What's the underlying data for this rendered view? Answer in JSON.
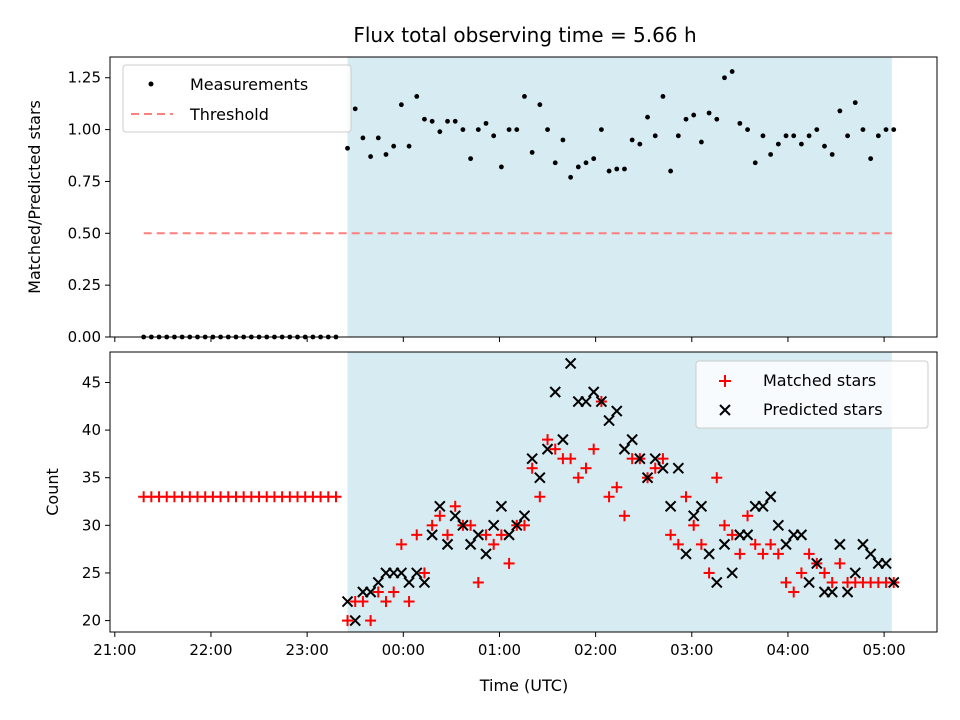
{
  "title": "Flux total observing time = 5.66 h",
  "shade_color": "#add8e6",
  "x_ticks": [
    "21:00",
    "22:00",
    "23:00",
    "00:00",
    "01:00",
    "02:00",
    "03:00",
    "04:00",
    "05:00"
  ],
  "x_label": "Time (UTC)",
  "chart_data": [
    {
      "type": "scatter",
      "ylabel": "Matched/Predicted stars",
      "xlim": [
        20.95,
        29.55
      ],
      "ylim": [
        0,
        1.35
      ],
      "yticks": [
        "0.00",
        "0.25",
        "0.50",
        "0.75",
        "1.00",
        "1.25"
      ],
      "shaded_x": [
        23.42,
        29.08
      ],
      "legend_position": "top-left",
      "series": [
        {
          "name": "Measurements",
          "color": "#000000",
          "marker": "dot",
          "x": [
            21.3,
            21.38,
            21.46,
            21.54,
            21.62,
            21.7,
            21.78,
            21.86,
            21.94,
            22.02,
            22.1,
            22.18,
            22.26,
            22.34,
            22.42,
            22.5,
            22.58,
            22.66,
            22.74,
            22.82,
            22.9,
            22.98,
            23.06,
            23.14,
            23.22,
            23.3,
            23.42,
            23.5,
            23.58,
            23.66,
            23.74,
            23.82,
            23.9,
            23.98,
            24.06,
            24.14,
            24.22,
            24.3,
            24.38,
            24.46,
            24.54,
            24.62,
            24.7,
            24.78,
            24.86,
            24.94,
            25.02,
            25.1,
            25.18,
            25.26,
            25.34,
            25.42,
            25.5,
            25.58,
            25.66,
            25.74,
            25.82,
            25.9,
            25.98,
            26.06,
            26.14,
            26.22,
            26.3,
            26.38,
            26.46,
            26.54,
            26.62,
            26.7,
            26.78,
            26.86,
            26.94,
            27.02,
            27.1,
            27.18,
            27.26,
            27.34,
            27.42,
            27.5,
            27.58,
            27.66,
            27.74,
            27.82,
            27.9,
            27.98,
            28.06,
            28.14,
            28.22,
            28.3,
            28.38,
            28.46,
            28.54,
            28.62,
            28.7,
            28.78,
            28.86,
            28.94,
            29.02,
            29.1
          ],
          "y": [
            0,
            0,
            0,
            0,
            0,
            0,
            0,
            0,
            0,
            0,
            0,
            0,
            0,
            0,
            0,
            0,
            0,
            0,
            0,
            0,
            0,
            0,
            0,
            0,
            0,
            0,
            0.91,
            1.1,
            0.96,
            0.87,
            0.96,
            0.88,
            0.92,
            1.12,
            0.92,
            1.16,
            1.05,
            1.04,
            0.99,
            1.04,
            1.04,
            1.0,
            0.86,
            1.0,
            1.03,
            0.97,
            0.82,
            1.0,
            1.0,
            1.16,
            0.89,
            1.12,
            1.0,
            0.84,
            0.95,
            0.77,
            0.82,
            0.84,
            0.86,
            1.0,
            0.8,
            0.81,
            0.81,
            0.95,
            0.93,
            1.06,
            0.97,
            1.16,
            0.8,
            0.97,
            1.05,
            1.07,
            0.94,
            1.08,
            1.05,
            1.25,
            1.28,
            1.03,
            1.0,
            0.84,
            0.97,
            0.88,
            0.93,
            0.97,
            0.97,
            0.93,
            0.97,
            1.0,
            0.92,
            0.88,
            1.09,
            0.97,
            1.13,
            1.0,
            0.86,
            0.97,
            1.0,
            1.0
          ]
        },
        {
          "name": "Threshold",
          "color": "#ff7f7f",
          "style": "dashed",
          "x": [
            21.3,
            29.08
          ],
          "y": [
            0.5,
            0.5
          ]
        }
      ]
    },
    {
      "type": "scatter",
      "ylabel": "Count",
      "xlim": [
        20.95,
        29.55
      ],
      "ylim": [
        18.8,
        48.2
      ],
      "yticks": [
        "20",
        "25",
        "30",
        "35",
        "40",
        "45"
      ],
      "shaded_x": [
        23.42,
        29.08
      ],
      "legend_position": "top-right",
      "series": [
        {
          "name": "Matched stars",
          "color": "#ff0000",
          "marker": "plus",
          "x": [
            21.3,
            21.38,
            21.46,
            21.54,
            21.62,
            21.7,
            21.78,
            21.86,
            21.94,
            22.02,
            22.1,
            22.18,
            22.26,
            22.34,
            22.42,
            22.5,
            22.58,
            22.66,
            22.74,
            22.82,
            22.9,
            22.98,
            23.06,
            23.14,
            23.22,
            23.3,
            23.42,
            23.5,
            23.58,
            23.66,
            23.74,
            23.82,
            23.9,
            23.98,
            24.06,
            24.14,
            24.22,
            24.3,
            24.38,
            24.46,
            24.54,
            24.62,
            24.7,
            24.78,
            24.86,
            24.94,
            25.02,
            25.1,
            25.18,
            25.26,
            25.34,
            25.42,
            25.5,
            25.58,
            25.66,
            25.74,
            25.82,
            25.9,
            25.98,
            26.06,
            26.14,
            26.22,
            26.3,
            26.38,
            26.46,
            26.54,
            26.62,
            26.7,
            26.78,
            26.86,
            26.94,
            27.02,
            27.1,
            27.18,
            27.26,
            27.34,
            27.42,
            27.5,
            27.58,
            27.66,
            27.74,
            27.82,
            27.9,
            27.98,
            28.06,
            28.14,
            28.22,
            28.3,
            28.38,
            28.46,
            28.54,
            28.62,
            28.7,
            28.78,
            28.86,
            28.94,
            29.02,
            29.1
          ],
          "y": [
            33,
            33,
            33,
            33,
            33,
            33,
            33,
            33,
            33,
            33,
            33,
            33,
            33,
            33,
            33,
            33,
            33,
            33,
            33,
            33,
            33,
            33,
            33,
            33,
            33,
            33,
            20,
            22,
            22,
            20,
            23,
            22,
            23,
            28,
            22,
            29,
            25,
            30,
            31,
            29,
            32,
            30,
            30,
            24,
            29,
            28,
            29,
            26,
            30,
            30,
            36,
            33,
            39,
            38,
            37,
            37,
            35,
            36,
            38,
            43,
            33,
            34,
            31,
            37,
            37,
            35,
            36,
            37,
            29,
            28,
            33,
            30,
            28,
            25,
            35,
            30,
            29,
            27,
            31,
            28,
            27,
            28,
            27,
            24,
            23,
            25,
            27,
            26,
            25,
            24,
            26,
            24,
            24,
            24,
            24,
            24,
            24,
            24
          ]
        },
        {
          "name": "Predicted stars",
          "color": "#000000",
          "marker": "x",
          "x": [
            23.42,
            23.5,
            23.58,
            23.66,
            23.74,
            23.82,
            23.9,
            23.98,
            24.06,
            24.14,
            24.22,
            24.3,
            24.38,
            24.46,
            24.54,
            24.62,
            24.7,
            24.78,
            24.86,
            24.94,
            25.02,
            25.1,
            25.18,
            25.26,
            25.34,
            25.42,
            25.5,
            25.58,
            25.66,
            25.74,
            25.82,
            25.9,
            25.98,
            26.06,
            26.14,
            26.22,
            26.3,
            26.38,
            26.46,
            26.54,
            26.62,
            26.7,
            26.78,
            26.86,
            26.94,
            27.02,
            27.1,
            27.18,
            27.26,
            27.34,
            27.42,
            27.5,
            27.58,
            27.66,
            27.74,
            27.82,
            27.9,
            27.98,
            28.06,
            28.14,
            28.22,
            28.3,
            28.38,
            28.46,
            28.54,
            28.62,
            28.7,
            28.78,
            28.86,
            28.94,
            29.02,
            29.1
          ],
          "y": [
            22,
            20,
            23,
            23,
            24,
            25,
            25,
            25,
            24,
            25,
            24,
            29,
            32,
            28,
            31,
            30,
            28,
            29,
            27,
            30,
            32,
            29,
            30,
            31,
            37,
            35,
            38,
            44,
            39,
            47,
            43,
            43,
            44,
            43,
            41,
            42,
            38,
            39,
            37,
            35,
            37,
            36,
            32,
            36,
            27,
            31,
            32,
            27,
            24,
            28,
            25,
            29,
            29,
            32,
            32,
            33,
            30,
            28,
            29,
            29,
            24,
            26,
            23,
            23,
            28,
            23,
            25,
            28,
            27,
            26,
            26,
            24
          ]
        }
      ]
    }
  ]
}
